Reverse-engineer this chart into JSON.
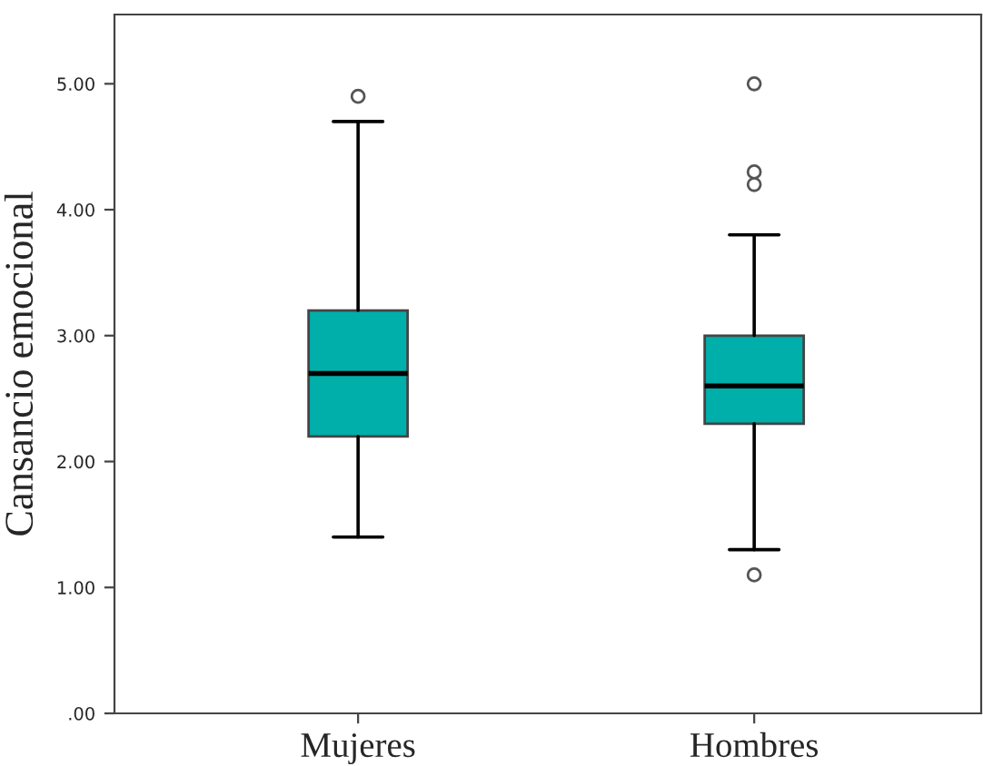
{
  "chart_data": {
    "type": "box",
    "ylabel": "Cansancio emocional",
    "categories": [
      "Mujeres",
      "Hombres"
    ],
    "color": "#00aeaa",
    "boxes": [
      {
        "low": 1.4,
        "q1": 2.2,
        "median": 2.7,
        "q3": 3.2,
        "high": 4.7,
        "outliers": [
          4.9
        ]
      },
      {
        "low": 1.3,
        "q1": 2.3,
        "median": 2.6,
        "q3": 3.0,
        "high": 3.8,
        "outliers": [
          5.0,
          4.3,
          4.2,
          1.1
        ]
      }
    ],
    "ylim": [
      0,
      5.55
    ],
    "yticks": [
      {
        "value": 0,
        "label": ".00"
      },
      {
        "value": 1,
        "label": "1.00"
      },
      {
        "value": 2,
        "label": "2.00"
      },
      {
        "value": 3,
        "label": "3.00"
      },
      {
        "value": 4,
        "label": "4.00"
      },
      {
        "value": 5,
        "label": "5.00"
      }
    ],
    "grid": false,
    "legend": false
  }
}
